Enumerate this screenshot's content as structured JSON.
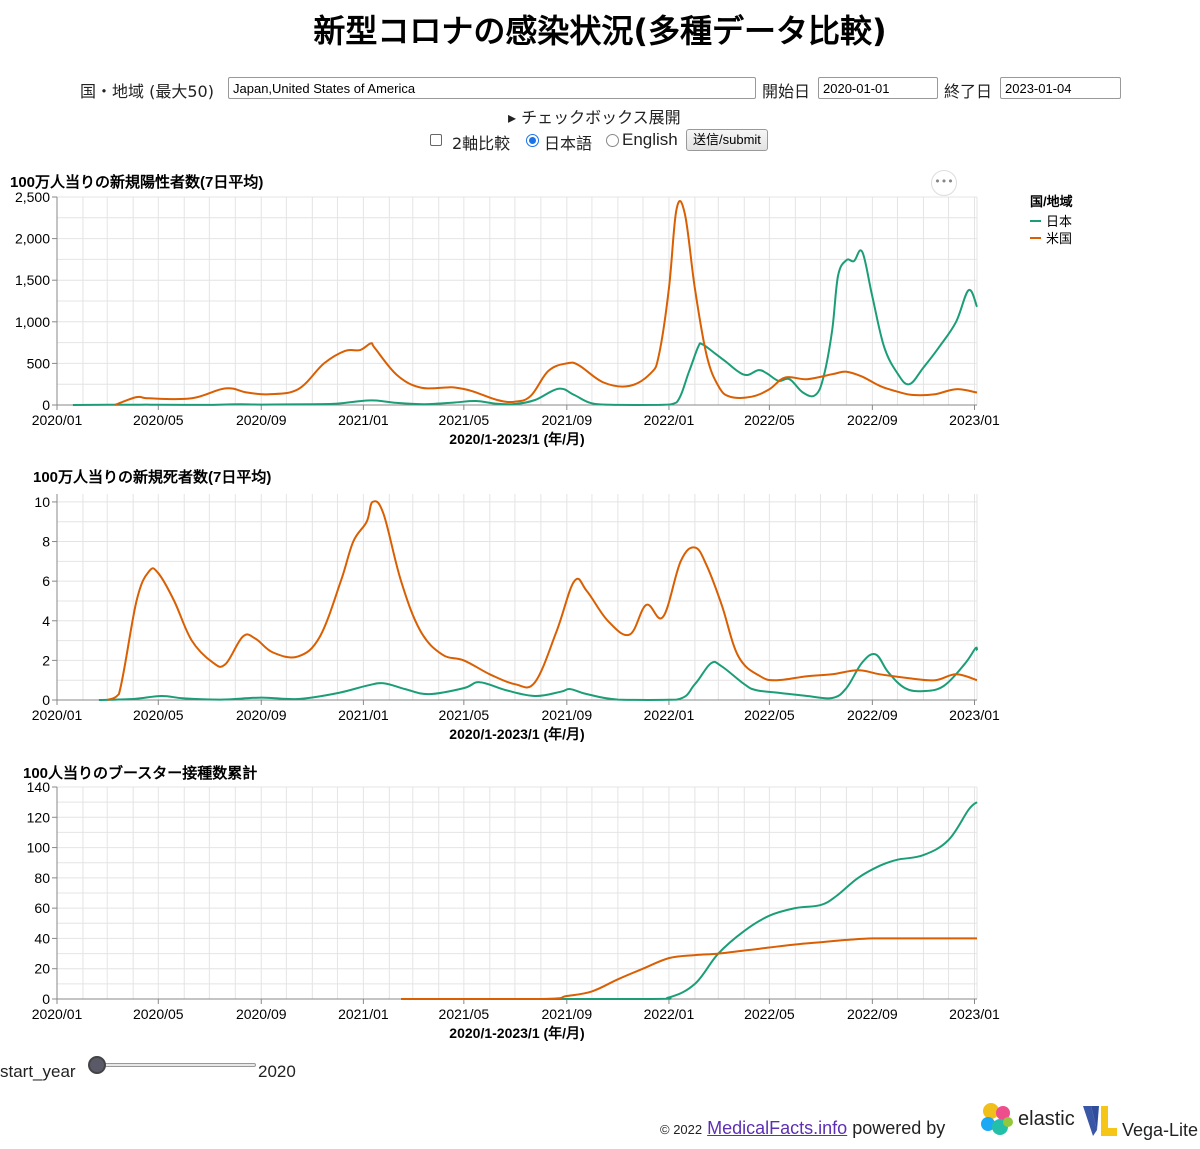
{
  "page": {
    "title": "新型コロナの感染状況(多種データ比較)"
  },
  "form": {
    "region_label": "国・地域 (最大50)",
    "region_value": "Japan,United States of America",
    "start_label": "開始日",
    "start_value": "2020-01-01",
    "end_label": "終了日",
    "end_value": "2023-01-04",
    "expand_label": "▸ チェックボックス展開",
    "dual_axis_label": "2軸比較",
    "lang_ja_label": "日本語",
    "lang_en_label": "English",
    "submit_label": "送信/submit"
  },
  "legend": {
    "title": "国/地域",
    "items": [
      {
        "label": "日本",
        "color": "#1b9e77"
      },
      {
        "label": "米国",
        "color": "#d95f02"
      }
    ]
  },
  "chart_data": [
    {
      "type": "line",
      "title": "100万人当りの新規陽性者数(7日平均)",
      "xlabel": "2020/1-2023/1 (年/月)",
      "ylabel": "",
      "x_ticks": [
        "2020/01",
        "2020/05",
        "2020/09",
        "2021/01",
        "2021/05",
        "2021/09",
        "2022/01",
        "2022/05",
        "2022/09",
        "2023/01"
      ],
      "y_ticks": [
        "0",
        "500",
        "1,000",
        "1,500",
        "2,000",
        "2,500"
      ],
      "ylim": [
        0,
        2500
      ],
      "grid": true,
      "legend_position": "top-right",
      "series": [
        {
          "name": "日本",
          "color": "#1b9e77",
          "points": [
            [
              "2020-01-20",
              0
            ],
            [
              "2020-04-10",
              4
            ],
            [
              "2020-05-01",
              2
            ],
            [
              "2020-07-01",
              1
            ],
            [
              "2020-08-05",
              9
            ],
            [
              "2020-09-01",
              5
            ],
            [
              "2020-11-01",
              10
            ],
            [
              "2020-12-01",
              17
            ],
            [
              "2021-01-10",
              55
            ],
            [
              "2021-02-10",
              25
            ],
            [
              "2021-03-15",
              10
            ],
            [
              "2021-04-20",
              30
            ],
            [
              "2021-05-15",
              48
            ],
            [
              "2021-06-10",
              14
            ],
            [
              "2021-07-01",
              12
            ],
            [
              "2021-07-25",
              60
            ],
            [
              "2021-08-22",
              196
            ],
            [
              "2021-09-10",
              120
            ],
            [
              "2021-10-01",
              20
            ],
            [
              "2021-11-01",
              1
            ],
            [
              "2021-12-20",
              1
            ],
            [
              "2022-01-10",
              30
            ],
            [
              "2022-01-25",
              400
            ],
            [
              "2022-02-05",
              700
            ],
            [
              "2022-02-10",
              730
            ],
            [
              "2022-02-25",
              620
            ],
            [
              "2022-03-10",
              520
            ],
            [
              "2022-03-25",
              400
            ],
            [
              "2022-04-05",
              360
            ],
            [
              "2022-04-18",
              420
            ],
            [
              "2022-04-28",
              380
            ],
            [
              "2022-05-12",
              290
            ],
            [
              "2022-05-25",
              310
            ],
            [
              "2022-06-10",
              150
            ],
            [
              "2022-06-25",
              120
            ],
            [
              "2022-07-05",
              350
            ],
            [
              "2022-07-15",
              900
            ],
            [
              "2022-07-22",
              1550
            ],
            [
              "2022-08-01",
              1740
            ],
            [
              "2022-08-10",
              1730
            ],
            [
              "2022-08-20",
              1840
            ],
            [
              "2022-09-01",
              1300
            ],
            [
              "2022-09-15",
              700
            ],
            [
              "2022-10-01",
              380
            ],
            [
              "2022-10-15",
              250
            ],
            [
              "2022-11-01",
              450
            ],
            [
              "2022-11-20",
              700
            ],
            [
              "2022-12-10",
              1000
            ],
            [
              "2022-12-25",
              1380
            ],
            [
              "2023-01-04",
              1180
            ]
          ]
        },
        {
          "name": "米国",
          "color": "#d95f02",
          "points": [
            [
              "2020-03-10",
              0
            ],
            [
              "2020-04-05",
              95
            ],
            [
              "2020-04-20",
              80
            ],
            [
              "2020-06-10",
              80
            ],
            [
              "2020-07-20",
              200
            ],
            [
              "2020-08-15",
              150
            ],
            [
              "2020-09-10",
              130
            ],
            [
              "2020-10-15",
              190
            ],
            [
              "2020-11-15",
              500
            ],
            [
              "2020-12-10",
              650
            ],
            [
              "2020-12-28",
              660
            ],
            [
              "2021-01-10",
              740
            ],
            [
              "2021-01-15",
              680
            ],
            [
              "2021-02-10",
              360
            ],
            [
              "2021-03-10",
              210
            ],
            [
              "2021-04-10",
              210
            ],
            [
              "2021-04-20",
              210
            ],
            [
              "2021-05-10",
              170
            ],
            [
              "2021-06-10",
              60
            ],
            [
              "2021-07-01",
              40
            ],
            [
              "2021-07-20",
              110
            ],
            [
              "2021-08-10",
              410
            ],
            [
              "2021-09-01",
              500
            ],
            [
              "2021-09-15",
              480
            ],
            [
              "2021-10-15",
              270
            ],
            [
              "2021-11-15",
              230
            ],
            [
              "2021-12-10",
              380
            ],
            [
              "2021-12-20",
              600
            ],
            [
              "2022-01-01",
              1400
            ],
            [
              "2022-01-10",
              2350
            ],
            [
              "2022-01-20",
              2300
            ],
            [
              "2022-02-01",
              1400
            ],
            [
              "2022-02-15",
              600
            ],
            [
              "2022-03-01",
              230
            ],
            [
              "2022-03-15",
              100
            ],
            [
              "2022-04-10",
              100
            ],
            [
              "2022-05-01",
              190
            ],
            [
              "2022-05-20",
              330
            ],
            [
              "2022-06-15",
              310
            ],
            [
              "2022-07-15",
              370
            ],
            [
              "2022-08-01",
              400
            ],
            [
              "2022-08-20",
              340
            ],
            [
              "2022-09-10",
              230
            ],
            [
              "2022-10-01",
              160
            ],
            [
              "2022-10-20",
              120
            ],
            [
              "2022-11-15",
              130
            ],
            [
              "2022-12-10",
              190
            ],
            [
              "2023-01-04",
              150
            ]
          ]
        }
      ]
    },
    {
      "type": "line",
      "title": "100万人当りの新規死者数(7日平均)",
      "xlabel": "2020/1-2023/1 (年/月)",
      "ylabel": "",
      "x_ticks": [
        "2020/01",
        "2020/05",
        "2020/09",
        "2021/01",
        "2021/05",
        "2021/09",
        "2022/01",
        "2022/05",
        "2022/09",
        "2023/01"
      ],
      "y_ticks": [
        "0",
        "2",
        "4",
        "6",
        "8",
        "10"
      ],
      "ylim": [
        0,
        10.4
      ],
      "grid": true,
      "series": [
        {
          "name": "日本",
          "color": "#1b9e77",
          "points": [
            [
              "2020-02-20",
              0
            ],
            [
              "2020-04-01",
              0.05
            ],
            [
              "2020-05-05",
              0.2
            ],
            [
              "2020-06-01",
              0.08
            ],
            [
              "2020-07-15",
              0.02
            ],
            [
              "2020-09-01",
              0.12
            ],
            [
              "2020-10-15",
              0.05
            ],
            [
              "2020-12-01",
              0.35
            ],
            [
              "2021-01-05",
              0.72
            ],
            [
              "2021-01-25",
              0.85
            ],
            [
              "2021-02-20",
              0.55
            ],
            [
              "2021-03-20",
              0.3
            ],
            [
              "2021-05-01",
              0.6
            ],
            [
              "2021-05-20",
              0.9
            ],
            [
              "2021-06-20",
              0.5
            ],
            [
              "2021-07-25",
              0.2
            ],
            [
              "2021-08-25",
              0.42
            ],
            [
              "2021-09-05",
              0.55
            ],
            [
              "2021-09-25",
              0.3
            ],
            [
              "2021-11-01",
              0.02
            ],
            [
              "2022-01-10",
              0.02
            ],
            [
              "2022-02-01",
              0.8
            ],
            [
              "2022-02-20",
              1.85
            ],
            [
              "2022-03-05",
              1.7
            ],
            [
              "2022-04-01",
              0.8
            ],
            [
              "2022-04-15",
              0.5
            ],
            [
              "2022-05-15",
              0.35
            ],
            [
              "2022-06-15",
              0.2
            ],
            [
              "2022-07-15",
              0.1
            ],
            [
              "2022-08-01",
              0.6
            ],
            [
              "2022-08-20",
              1.9
            ],
            [
              "2022-09-05",
              2.3
            ],
            [
              "2022-09-20",
              1.4
            ],
            [
              "2022-10-10",
              0.6
            ],
            [
              "2022-11-01",
              0.45
            ],
            [
              "2022-11-25",
              0.7
            ],
            [
              "2022-12-20",
              1.8
            ],
            [
              "2023-01-02",
              2.6
            ],
            [
              "2023-01-04",
              2.5
            ]
          ]
        },
        {
          "name": "米国",
          "color": "#d95f02",
          "points": [
            [
              "2020-03-01",
              0
            ],
            [
              "2020-03-15",
              0.3
            ],
            [
              "2020-04-05",
              5.0
            ],
            [
              "2020-04-20",
              6.5
            ],
            [
              "2020-05-01",
              6.4
            ],
            [
              "2020-05-20",
              5.0
            ],
            [
              "2020-06-10",
              3.0
            ],
            [
              "2020-07-05",
              1.9
            ],
            [
              "2020-07-20",
              1.8
            ],
            [
              "2020-08-10",
              3.2
            ],
            [
              "2020-08-25",
              3.1
            ],
            [
              "2020-09-15",
              2.4
            ],
            [
              "2020-10-15",
              2.2
            ],
            [
              "2020-11-10",
              3.2
            ],
            [
              "2020-12-05",
              6.0
            ],
            [
              "2020-12-20",
              8.0
            ],
            [
              "2021-01-05",
              9.0
            ],
            [
              "2021-01-12",
              10.0
            ],
            [
              "2021-01-25",
              9.4
            ],
            [
              "2021-02-15",
              6.0
            ],
            [
              "2021-03-10",
              3.5
            ],
            [
              "2021-04-05",
              2.3
            ],
            [
              "2021-05-01",
              2.0
            ],
            [
              "2021-06-01",
              1.3
            ],
            [
              "2021-07-01",
              0.8
            ],
            [
              "2021-07-25",
              0.9
            ],
            [
              "2021-08-20",
              3.5
            ],
            [
              "2021-09-10",
              6.0
            ],
            [
              "2021-09-25",
              5.5
            ],
            [
              "2021-10-20",
              4.0
            ],
            [
              "2021-11-15",
              3.3
            ],
            [
              "2021-12-05",
              4.8
            ],
            [
              "2021-12-25",
              4.2
            ],
            [
              "2022-01-15",
              7.0
            ],
            [
              "2022-02-01",
              7.7
            ],
            [
              "2022-02-15",
              6.8
            ],
            [
              "2022-03-05",
              4.8
            ],
            [
              "2022-03-25",
              2.2
            ],
            [
              "2022-04-20",
              1.2
            ],
            [
              "2022-05-10",
              1.0
            ],
            [
              "2022-06-15",
              1.2
            ],
            [
              "2022-07-15",
              1.3
            ],
            [
              "2022-08-15",
              1.5
            ],
            [
              "2022-09-10",
              1.3
            ],
            [
              "2022-10-15",
              1.1
            ],
            [
              "2022-11-15",
              1.0
            ],
            [
              "2022-12-10",
              1.3
            ],
            [
              "2023-01-04",
              1.0
            ]
          ]
        }
      ]
    },
    {
      "type": "line",
      "title": "100人当りのブースター接種数累計",
      "xlabel": "2020/1-2023/1 (年/月)",
      "ylabel": "",
      "x_ticks": [
        "2020/01",
        "2020/05",
        "2020/09",
        "2021/01",
        "2021/05",
        "2021/09",
        "2022/01",
        "2022/05",
        "2022/09",
        "2023/01"
      ],
      "y_ticks": [
        "0",
        "20",
        "40",
        "60",
        "80",
        "100",
        "120",
        "140"
      ],
      "ylim": [
        0,
        140
      ],
      "grid": true,
      "series": [
        {
          "name": "日本",
          "color": "#1b9e77",
          "points": [
            [
              "2021-02-15",
              0
            ],
            [
              "2021-12-01",
              0
            ],
            [
              "2022-01-01",
              1
            ],
            [
              "2022-02-01",
              10
            ],
            [
              "2022-03-01",
              30
            ],
            [
              "2022-04-01",
              45
            ],
            [
              "2022-05-01",
              55
            ],
            [
              "2022-06-01",
              60
            ],
            [
              "2022-07-01",
              62
            ],
            [
              "2022-07-20",
              68
            ],
            [
              "2022-08-15",
              80
            ],
            [
              "2022-09-10",
              88
            ],
            [
              "2022-10-01",
              92
            ],
            [
              "2022-11-01",
              95
            ],
            [
              "2022-12-01",
              105
            ],
            [
              "2022-12-25",
              125
            ],
            [
              "2023-01-04",
              130
            ]
          ]
        },
        {
          "name": "米国",
          "color": "#d95f02",
          "points": [
            [
              "2021-02-15",
              0
            ],
            [
              "2021-08-01",
              0
            ],
            [
              "2021-09-01",
              2
            ],
            [
              "2021-10-01",
              5
            ],
            [
              "2021-11-01",
              13
            ],
            [
              "2021-12-01",
              20
            ],
            [
              "2022-01-01",
              27
            ],
            [
              "2022-02-01",
              29
            ],
            [
              "2022-03-01",
              30
            ],
            [
              "2022-04-01",
              32
            ],
            [
              "2022-05-01",
              34
            ],
            [
              "2022-06-01",
              36
            ],
            [
              "2022-07-01",
              37.5
            ],
            [
              "2022-08-01",
              39
            ],
            [
              "2022-09-01",
              40
            ],
            [
              "2022-10-01",
              40
            ],
            [
              "2022-11-01",
              40
            ],
            [
              "2023-01-04",
              40
            ]
          ]
        }
      ]
    }
  ],
  "slider": {
    "label": "start_year",
    "value": "2020",
    "fraction": 0.0
  },
  "footer": {
    "copyright": "© 2022",
    "link_text": "MedicalFacts.info",
    "powered_by": "powered by",
    "elastic_label": "elastic",
    "vega_label": "Vega-Lite"
  }
}
